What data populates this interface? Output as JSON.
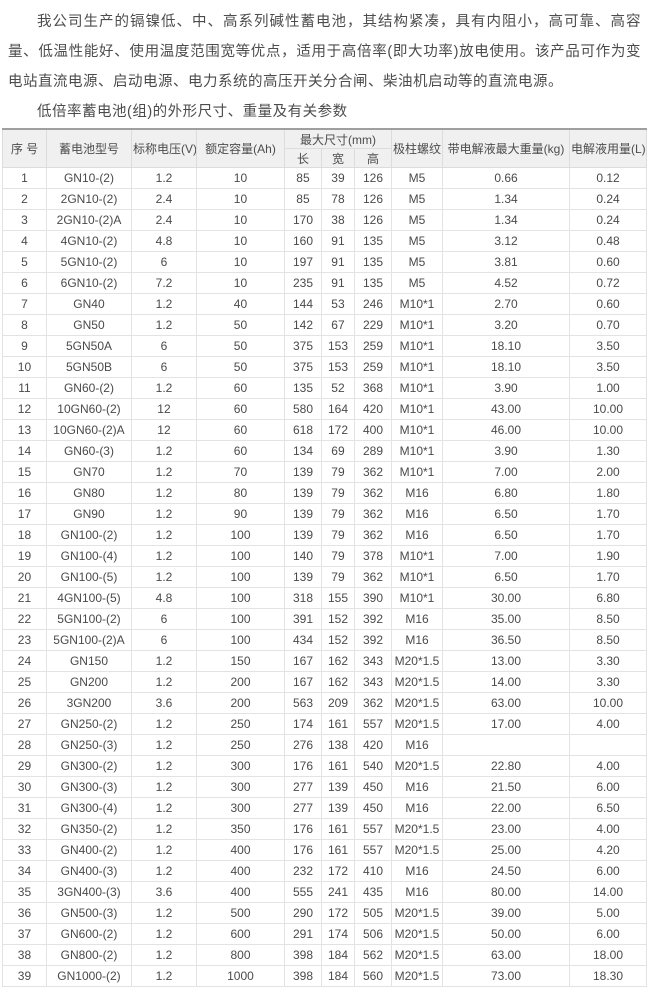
{
  "page": {
    "intro_text": "我公司生产的镉镍低、中、高系列碱性蓄电池，其结构紧凑，具有内阻小，高可靠、高容量、低温性能好、使用温度范围宽等优点，适用于高倍率(即大功率)放电使用。该产品可作为变电站直流电源、启动电源、电力系统的高压开关分合闸、柴油机启动等的直流电源。",
    "table_title": "低倍率蓄电池(组)的外形尺寸、重量及有关参数"
  },
  "colors": {
    "text": "#4c4c4c",
    "table_header_bg": "#f0f0f0",
    "table_border": "#e3e3e3",
    "table_top_border": "#9f9f9f"
  },
  "table": {
    "headers": {
      "index": "序 号",
      "model": "蓄电池型号",
      "voltage": "标称电压(V)",
      "capacity": "额定容量(Ah)",
      "dimensions": "最大尺寸(mm)",
      "length": "长",
      "width": "宽",
      "height": "高",
      "thread": "极柱螺纹",
      "weight": "带电解液最大重量(kg)",
      "electrolyte": "电解液用量(L)"
    },
    "rows": [
      [
        "1",
        "GN10-(2)",
        "1.2",
        "10",
        "85",
        "39",
        "126",
        "M5",
        "0.66",
        "0.12"
      ],
      [
        "2",
        "2GN10-(2)",
        "2.4",
        "10",
        "85",
        "78",
        "126",
        "M5",
        "1.34",
        "0.24"
      ],
      [
        "3",
        "2GN10-(2)A",
        "2.4",
        "10",
        "170",
        "38",
        "126",
        "M5",
        "1.34",
        "0.24"
      ],
      [
        "4",
        "4GN10-(2)",
        "4.8",
        "10",
        "160",
        "91",
        "135",
        "M5",
        "3.12",
        "0.48"
      ],
      [
        "5",
        "5GN10-(2)",
        "6",
        "10",
        "197",
        "91",
        "135",
        "M5",
        "3.81",
        "0.60"
      ],
      [
        "6",
        "6GN10-(2)",
        "7.2",
        "10",
        "235",
        "91",
        "135",
        "M5",
        "4.52",
        "0.72"
      ],
      [
        "7",
        "GN40",
        "1.2",
        "40",
        "144",
        "53",
        "246",
        "M10*1",
        "2.70",
        "0.60"
      ],
      [
        "8",
        "GN50",
        "1.2",
        "50",
        "142",
        "67",
        "229",
        "M10*1",
        "3.20",
        "0.70"
      ],
      [
        "9",
        "5GN50A",
        "6",
        "50",
        "375",
        "153",
        "259",
        "M10*1",
        "18.10",
        "3.50"
      ],
      [
        "10",
        "5GN50B",
        "6",
        "50",
        "375",
        "153",
        "259",
        "M10*1",
        "18.10",
        "3.50"
      ],
      [
        "11",
        "GN60-(2)",
        "1.2",
        "60",
        "135",
        "52",
        "368",
        "M10*1",
        "3.90",
        "1.00"
      ],
      [
        "12",
        "10GN60-(2)",
        "12",
        "60",
        "580",
        "164",
        "420",
        "M10*1",
        "43.00",
        "10.00"
      ],
      [
        "13",
        "10GN60-(2)A",
        "12",
        "60",
        "618",
        "172",
        "400",
        "M10*1",
        "46.00",
        "10.00"
      ],
      [
        "14",
        "GN60-(3)",
        "1.2",
        "60",
        "134",
        "69",
        "289",
        "M10*1",
        "3.90",
        "1.30"
      ],
      [
        "15",
        "GN70",
        "1.2",
        "70",
        "139",
        "79",
        "362",
        "M10*1",
        "7.00",
        "2.00"
      ],
      [
        "16",
        "GN80",
        "1.2",
        "80",
        "139",
        "79",
        "362",
        "M16",
        "6.80",
        "1.80"
      ],
      [
        "17",
        "GN90",
        "1.2",
        "90",
        "139",
        "79",
        "362",
        "M16",
        "6.50",
        "1.70"
      ],
      [
        "18",
        "GN100-(2)",
        "1.2",
        "100",
        "139",
        "79",
        "362",
        "M16",
        "6.50",
        "1.70"
      ],
      [
        "19",
        "GN100-(4)",
        "1.2",
        "100",
        "140",
        "79",
        "378",
        "M10*1",
        "7.00",
        "1.90"
      ],
      [
        "20",
        "GN100-(5)",
        "1.2",
        "100",
        "139",
        "79",
        "362",
        "M10*1",
        "6.50",
        "1.70"
      ],
      [
        "21",
        "4GN100-(5)",
        "4.8",
        "100",
        "318",
        "155",
        "390",
        "M10*1",
        "30.00",
        "6.80"
      ],
      [
        "22",
        "5GN100-(2)",
        "6",
        "100",
        "391",
        "152",
        "392",
        "M16",
        "35.00",
        "8.50"
      ],
      [
        "23",
        "5GN100-(2)A",
        "6",
        "100",
        "434",
        "152",
        "392",
        "M16",
        "36.50",
        "8.50"
      ],
      [
        "24",
        "GN150",
        "1.2",
        "150",
        "167",
        "162",
        "343",
        "M20*1.5",
        "13.00",
        "3.30"
      ],
      [
        "25",
        "GN200",
        "1.2",
        "200",
        "167",
        "162",
        "343",
        "M20*1.5",
        "14.00",
        "3.30"
      ],
      [
        "26",
        "3GN200",
        "3.6",
        "200",
        "563",
        "209",
        "362",
        "M20*1.5",
        "63.00",
        "10.00"
      ],
      [
        "27",
        "GN250-(2)",
        "1.2",
        "250",
        "174",
        "161",
        "557",
        "M20*1.5",
        "17.00",
        "4.00"
      ],
      [
        "28",
        "GN250-(3)",
        "1.2",
        "250",
        "276",
        "138",
        "420",
        "M16",
        "",
        ""
      ],
      [
        "29",
        "GN300-(2)",
        "1.2",
        "300",
        "176",
        "161",
        "540",
        "M20*1.5",
        "22.80",
        "4.00"
      ],
      [
        "30",
        "GN300-(3)",
        "1.2",
        "300",
        "277",
        "139",
        "450",
        "M16",
        "21.50",
        "6.00"
      ],
      [
        "31",
        "GN300-(4)",
        "1.2",
        "300",
        "277",
        "139",
        "450",
        "M16",
        "22.00",
        "6.50"
      ],
      [
        "32",
        "GN350-(2)",
        "1.2",
        "350",
        "176",
        "161",
        "557",
        "M20*1.5",
        "23.00",
        "4.00"
      ],
      [
        "33",
        "GN400-(2)",
        "1.2",
        "400",
        "176",
        "161",
        "557",
        "M20*1.5",
        "25.00",
        "4.20"
      ],
      [
        "34",
        "GN400-(3)",
        "1.2",
        "400",
        "232",
        "172",
        "410",
        "M16",
        "24.50",
        "6.00"
      ],
      [
        "35",
        "3GN400-(3)",
        "3.6",
        "400",
        "555",
        "241",
        "435",
        "M16",
        "80.00",
        "14.00"
      ],
      [
        "36",
        "GN500-(3)",
        "1.2",
        "500",
        "290",
        "172",
        "505",
        "M20*1.5",
        "39.00",
        "5.00"
      ],
      [
        "37",
        "GN600-(2)",
        "1.2",
        "600",
        "291",
        "174",
        "506",
        "M20*1.5",
        "50.00",
        "6.00"
      ],
      [
        "38",
        "GN800-(2)",
        "1.2",
        "800",
        "398",
        "184",
        "562",
        "M20*1.5",
        "63.00",
        "18.00"
      ],
      [
        "39",
        "GN1000-(2)",
        "1.2",
        "1000",
        "398",
        "184",
        "560",
        "M20*1.5",
        "73.00",
        "18.30"
      ]
    ]
  }
}
